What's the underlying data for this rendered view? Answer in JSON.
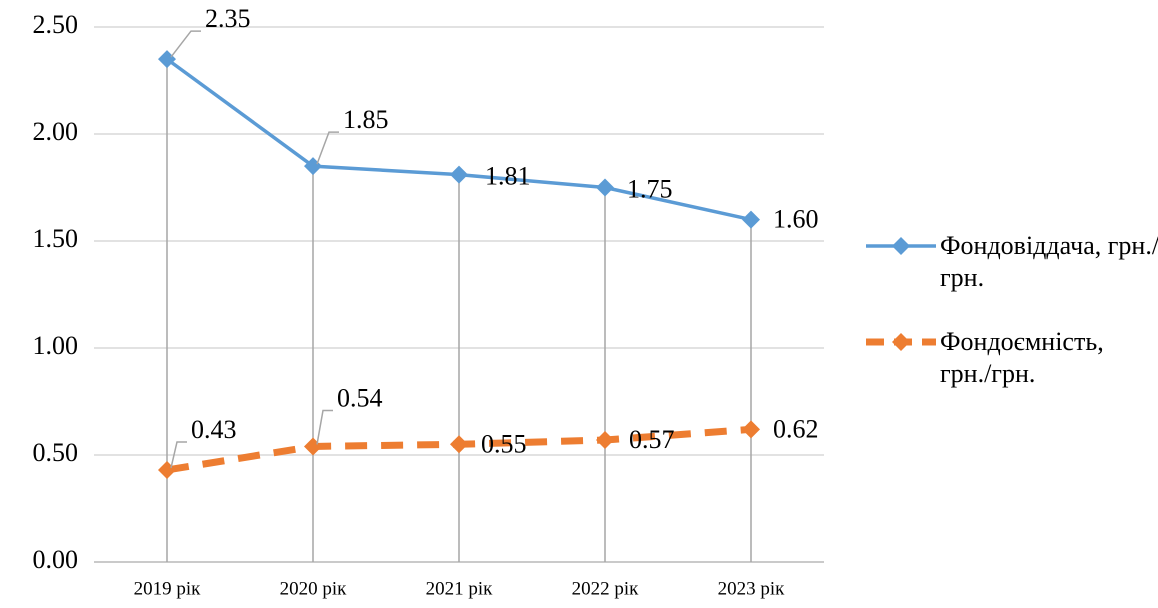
{
  "chart_data": {
    "type": "line",
    "categories": [
      "2019 рік",
      "2020 рік",
      "2021 рік",
      "2022 рік",
      "2023 рік"
    ],
    "series": [
      {
        "name": "Фондовіддача, грн./грн.",
        "color": "#5b9bd5",
        "dashed": false,
        "values": [
          2.35,
          1.85,
          1.81,
          1.75,
          1.6
        ],
        "value_labels": [
          "2.35",
          "1.85",
          "1.81",
          "1.75",
          "1.60"
        ]
      },
      {
        "name": "Фондоємність, грн./грн.",
        "color": "#ed7d31",
        "dashed": true,
        "values": [
          0.43,
          0.54,
          0.55,
          0.57,
          0.62
        ],
        "value_labels": [
          "0.43",
          "0.54",
          "0.55",
          "0.57",
          "0.62"
        ]
      }
    ],
    "ylim": [
      0,
      2.5
    ],
    "yticks": [
      {
        "value": 0,
        "label": "0.00"
      },
      {
        "value": 0.5,
        "label": "0.50"
      },
      {
        "value": 1,
        "label": "1.00"
      },
      {
        "value": 1.5,
        "label": "1.50"
      },
      {
        "value": 2,
        "label": "2.00"
      },
      {
        "value": 2.5,
        "label": "2.50"
      }
    ],
    "grid": true,
    "drop_lines": true,
    "legend": "right"
  }
}
